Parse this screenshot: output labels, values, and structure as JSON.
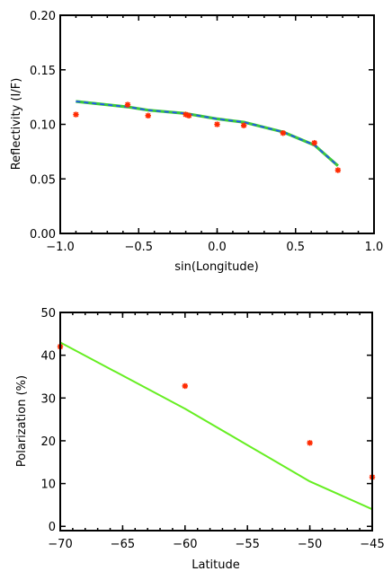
{
  "chart_data": [
    {
      "type": "scatter",
      "xlabel": "sin(Longitude)",
      "ylabel": "Reflectivity (I/F)",
      "xlim": [
        -1.0,
        1.0
      ],
      "ylim": [
        0.0,
        0.2
      ],
      "xticks": [
        -1.0,
        -0.5,
        0.0,
        0.5,
        1.0
      ],
      "xtick_labels": [
        "−1.0",
        "−0.5",
        "0.0",
        "0.5",
        "1.0"
      ],
      "yticks": [
        0.0,
        0.05,
        0.1,
        0.15,
        0.2
      ],
      "ytick_labels": [
        "0.00",
        "0.05",
        "0.10",
        "0.15",
        "0.20"
      ],
      "series": [
        {
          "kind": "points",
          "marker": "asterisk",
          "color": "#ff2a00",
          "x": [
            -0.9,
            -0.57,
            -0.44,
            -0.2,
            -0.18,
            0.0,
            0.17,
            0.42,
            0.62,
            0.77
          ],
          "y": [
            0.109,
            0.118,
            0.108,
            0.109,
            0.108,
            0.1,
            0.099,
            0.092,
            0.083,
            0.058
          ]
        },
        {
          "kind": "line",
          "style": "green-blue-dashed",
          "color": "#3cc93c",
          "dash_color": "#2255ee",
          "x": [
            -0.9,
            -0.57,
            -0.44,
            -0.2,
            0.0,
            0.17,
            0.42,
            0.62,
            0.77
          ],
          "y": [
            0.121,
            0.116,
            0.113,
            0.11,
            0.105,
            0.102,
            0.093,
            0.081,
            0.062
          ]
        }
      ]
    },
    {
      "type": "scatter",
      "xlabel": "Latitude",
      "ylabel": "Polarization (%)",
      "xlim": [
        -70,
        -45
      ],
      "ylim": [
        -1,
        50
      ],
      "xticks": [
        -70,
        -65,
        -60,
        -55,
        -50,
        -45
      ],
      "xtick_labels": [
        "−70",
        "−65",
        "−60",
        "−55",
        "−50",
        "−45"
      ],
      "yticks": [
        0,
        10,
        20,
        30,
        40,
        50
      ],
      "ytick_labels": [
        "0",
        "10",
        "20",
        "30",
        "40",
        "50"
      ],
      "series": [
        {
          "kind": "points",
          "marker": "asterisk",
          "color": "#ff2a00",
          "x": [
            -70,
            -60,
            -50,
            -45
          ],
          "y": [
            42,
            32.8,
            19.5,
            11.5
          ]
        },
        {
          "kind": "line",
          "style": "solid",
          "color": "#66ee22",
          "x": [
            -70,
            -60,
            -55,
            -50,
            -45
          ],
          "y": [
            43,
            27.5,
            19,
            10.5,
            4
          ]
        }
      ]
    }
  ]
}
